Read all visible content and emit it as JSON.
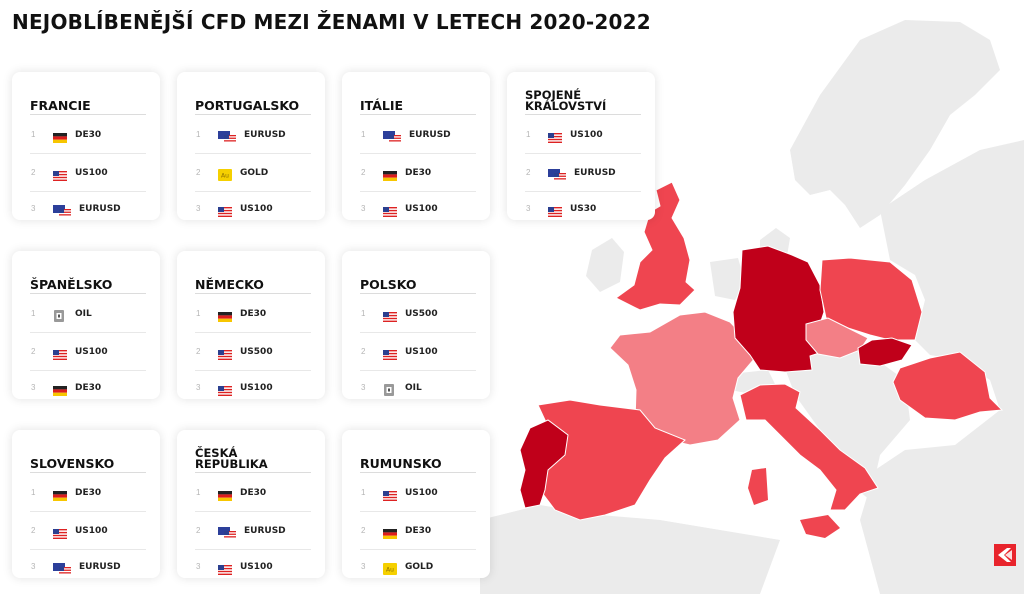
{
  "title": "NEJOBLÍBENĚJŠÍ CFD MEZI ŽENAMI V LETECH 2020-2022",
  "colors": {
    "darkest": "#c0001a",
    "dark": "#d4101f",
    "medium": "#ef4550",
    "light": "#f37f86",
    "land": "#ebebeb"
  },
  "icons": {
    "DE30": "germany-flag-icon",
    "US100": "usa-flag-icon",
    "US500": "usa-flag-icon",
    "US30": "usa-flag-icon",
    "EURUSD": "eu-usa-flag-icon",
    "GOLD": "gold-icon",
    "OIL": "oil-icon"
  },
  "cards": [
    {
      "name": "FRANCIE",
      "items": [
        {
          "rank": "1",
          "symbol": "DE30"
        },
        {
          "rank": "2",
          "symbol": "US100"
        },
        {
          "rank": "3",
          "symbol": "EURUSD"
        }
      ]
    },
    {
      "name": "PORTUGALSKO",
      "items": [
        {
          "rank": "1",
          "symbol": "EURUSD"
        },
        {
          "rank": "2",
          "symbol": "GOLD"
        },
        {
          "rank": "3",
          "symbol": "US100"
        }
      ]
    },
    {
      "name": "ITÁLIE",
      "items": [
        {
          "rank": "1",
          "symbol": "EURUSD"
        },
        {
          "rank": "2",
          "symbol": "DE30"
        },
        {
          "rank": "3",
          "symbol": "US100"
        }
      ]
    },
    {
      "name": "SPOJENÉ KRÁLOVSTVÍ",
      "items": [
        {
          "rank": "1",
          "symbol": "US100"
        },
        {
          "rank": "2",
          "symbol": "EURUSD"
        },
        {
          "rank": "3",
          "symbol": "US30"
        }
      ]
    },
    {
      "name": "ŠPANĚLSKO",
      "items": [
        {
          "rank": "1",
          "symbol": "OIL"
        },
        {
          "rank": "2",
          "symbol": "US100"
        },
        {
          "rank": "3",
          "symbol": "DE30"
        }
      ]
    },
    {
      "name": "NĚMECKO",
      "items": [
        {
          "rank": "1",
          "symbol": "DE30"
        },
        {
          "rank": "2",
          "symbol": "US500"
        },
        {
          "rank": "3",
          "symbol": "US100"
        }
      ]
    },
    {
      "name": "POLSKO",
      "items": [
        {
          "rank": "1",
          "symbol": "US500"
        },
        {
          "rank": "2",
          "symbol": "US100"
        },
        {
          "rank": "3",
          "symbol": "OIL"
        }
      ]
    },
    {
      "name": "SLOVENSKO",
      "items": [
        {
          "rank": "1",
          "symbol": "DE30"
        },
        {
          "rank": "2",
          "symbol": "US100"
        },
        {
          "rank": "3",
          "symbol": "EURUSD"
        }
      ]
    },
    {
      "name": "ČESKÁ REPUBLIKA",
      "items": [
        {
          "rank": "1",
          "symbol": "DE30"
        },
        {
          "rank": "2",
          "symbol": "EURUSD"
        },
        {
          "rank": "3",
          "symbol": "US100"
        }
      ]
    },
    {
      "name": "RUMUNSKO",
      "items": [
        {
          "rank": "1",
          "symbol": "US100"
        },
        {
          "rank": "2",
          "symbol": "DE30"
        },
        {
          "rank": "3",
          "symbol": "GOLD"
        }
      ]
    }
  ],
  "map": {
    "countries": [
      {
        "name": "Německo",
        "shade": "darkest"
      },
      {
        "name": "Portugalsko",
        "shade": "darkest"
      },
      {
        "name": "Slovensko",
        "shade": "darkest"
      },
      {
        "name": "Spojené království",
        "shade": "medium"
      },
      {
        "name": "Španělsko",
        "shade": "medium"
      },
      {
        "name": "Itálie",
        "shade": "medium"
      },
      {
        "name": "Polsko",
        "shade": "medium"
      },
      {
        "name": "Rumunsko",
        "shade": "medium"
      },
      {
        "name": "Francie",
        "shade": "light"
      },
      {
        "name": "Česká republika",
        "shade": "light"
      }
    ]
  }
}
